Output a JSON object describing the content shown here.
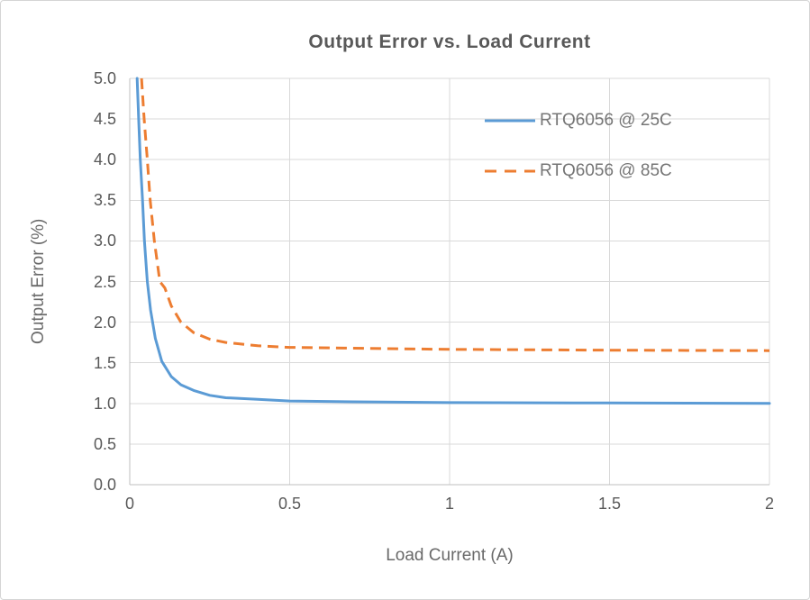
{
  "chart_data": {
    "type": "line",
    "title": "Output Error vs. Load Current",
    "xlabel": "Load Current (A)",
    "ylabel": "Output Error (%)",
    "xlim": [
      0,
      2
    ],
    "ylim": [
      0,
      5
    ],
    "x_ticks": {
      "labels": [
        "0",
        "0.5",
        "1",
        "1.5",
        "2"
      ],
      "values": [
        0,
        0.5,
        1,
        1.5,
        2
      ]
    },
    "y_ticks": {
      "labels": [
        "0.0",
        "0.5",
        "1.0",
        "1.5",
        "2.0",
        "2.5",
        "3.0",
        "3.5",
        "4.0",
        "4.5",
        "5.0"
      ],
      "values": [
        0,
        0.5,
        1,
        1.5,
        2,
        2.5,
        3,
        3.5,
        4,
        4.5,
        5
      ]
    },
    "grid": "both",
    "legend_position": "inside-top-right",
    "series": [
      {
        "name": "RTQ6056 @ 25C",
        "color": "#5B9BD5",
        "style": "solid",
        "dash": "",
        "points": [
          [
            0.023,
            5.0
          ],
          [
            0.028,
            4.5
          ],
          [
            0.033,
            4.0
          ],
          [
            0.04,
            3.5
          ],
          [
            0.046,
            3.0
          ],
          [
            0.055,
            2.5
          ],
          [
            0.065,
            2.15
          ],
          [
            0.08,
            1.8
          ],
          [
            0.1,
            1.52
          ],
          [
            0.13,
            1.33
          ],
          [
            0.16,
            1.23
          ],
          [
            0.2,
            1.16
          ],
          [
            0.25,
            1.1
          ],
          [
            0.3,
            1.07
          ],
          [
            0.4,
            1.05
          ],
          [
            0.5,
            1.03
          ],
          [
            0.7,
            1.02
          ],
          [
            1.0,
            1.01
          ],
          [
            1.5,
            1.005
          ],
          [
            2.0,
            1.0
          ]
        ]
      },
      {
        "name": "RTQ6056 @ 85C",
        "color": "#ED7D31",
        "style": "dashed",
        "dash": "12 7",
        "points": [
          [
            0.037,
            5.0
          ],
          [
            0.045,
            4.5
          ],
          [
            0.055,
            4.0
          ],
          [
            0.064,
            3.5
          ],
          [
            0.077,
            3.0
          ],
          [
            0.094,
            2.5
          ],
          [
            0.11,
            2.42
          ],
          [
            0.13,
            2.2
          ],
          [
            0.16,
            2.0
          ],
          [
            0.2,
            1.87
          ],
          [
            0.25,
            1.79
          ],
          [
            0.3,
            1.75
          ],
          [
            0.4,
            1.71
          ],
          [
            0.5,
            1.69
          ],
          [
            0.7,
            1.68
          ],
          [
            1.0,
            1.665
          ],
          [
            1.5,
            1.655
          ],
          [
            2.0,
            1.65
          ]
        ]
      }
    ]
  },
  "colors": {
    "gridline": "#D9D9D9",
    "axis_line": "#BFBFBF",
    "title_text": "#595959",
    "tick_text": "#595959",
    "axis_title_text": "#696969",
    "legend_text": "#757575",
    "background": "#FFFFFF",
    "frame_border": "#D5D5D5"
  }
}
